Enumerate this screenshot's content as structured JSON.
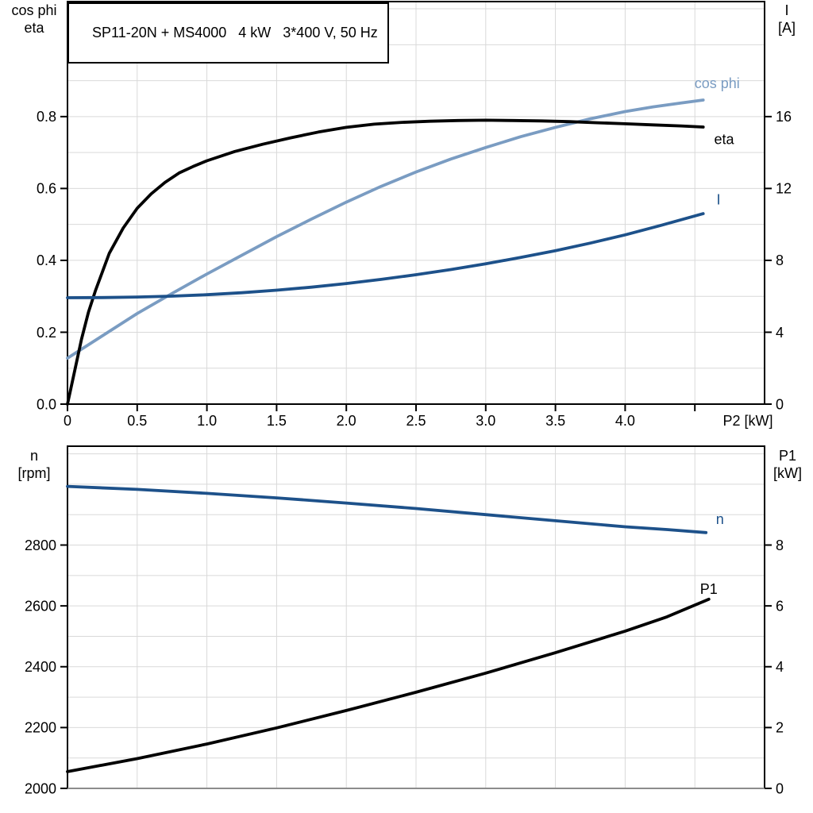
{
  "title": "SP11-20N + MS4000   4 kW   3*400 V, 50 Hz",
  "colors": {
    "axis": "#000000",
    "grid": "#d9d9d9",
    "baseline_gray": "#8c8c8c",
    "eta": "#000000",
    "cos_phi": "#7a9cc2",
    "current": "#1d518a",
    "speed": "#1d518a",
    "p1": "#000000",
    "text": "#000000"
  },
  "chart_data": [
    {
      "type": "line",
      "title": "SP11-20N + MS4000   4 kW   3*400 V, 50 Hz",
      "grid": true,
      "legend_position": "inline-curve-labels",
      "x_axis": {
        "label": "P2 [kW]",
        "range": [
          0,
          5.0
        ],
        "grid_step": 0.5,
        "ticks": [
          {
            "v": 0,
            "t": "0"
          },
          {
            "v": 0.5,
            "t": "0.5"
          },
          {
            "v": 1.0,
            "t": "1.0"
          },
          {
            "v": 1.5,
            "t": "1.5"
          },
          {
            "v": 2.0,
            "t": "2.0"
          },
          {
            "v": 2.5,
            "t": "2.5"
          },
          {
            "v": 3.0,
            "t": "3.0"
          },
          {
            "v": 3.5,
            "t": "3.5"
          },
          {
            "v": 4.0,
            "t": "4.0"
          },
          {
            "v": 4.5,
            "t": ""
          }
        ]
      },
      "left_axis": {
        "label_lines": [
          "cos phi",
          "eta"
        ],
        "range": [
          0,
          1.12
        ],
        "grid_step": 0.1,
        "ticks": [
          {
            "v": 0.0,
            "t": "0.0"
          },
          {
            "v": 0.2,
            "t": "0.2"
          },
          {
            "v": 0.4,
            "t": "0.4"
          },
          {
            "v": 0.6,
            "t": "0.6"
          },
          {
            "v": 0.8,
            "t": "0.8"
          }
        ]
      },
      "right_axis": {
        "label_lines": [
          "I",
          "[A]"
        ],
        "range": [
          0,
          22.4
        ],
        "grid_step": 2,
        "ticks": [
          {
            "v": 0,
            "t": "0"
          },
          {
            "v": 4,
            "t": "4"
          },
          {
            "v": 8,
            "t": "8"
          },
          {
            "v": 12,
            "t": "12"
          },
          {
            "v": 16,
            "t": "16"
          }
        ]
      },
      "series": [
        {
          "name": "cos-phi",
          "label": "cos phi",
          "axis": "left",
          "color_key": "cos_phi",
          "label_at": [
            4.66,
            0.893
          ],
          "points": [
            [
              0,
              0.128
            ],
            [
              0.25,
              0.19
            ],
            [
              0.5,
              0.252
            ],
            [
              0.75,
              0.308
            ],
            [
              1.0,
              0.362
            ],
            [
              1.25,
              0.414
            ],
            [
              1.5,
              0.466
            ],
            [
              1.75,
              0.515
            ],
            [
              2.0,
              0.562
            ],
            [
              2.25,
              0.606
            ],
            [
              2.5,
              0.646
            ],
            [
              2.75,
              0.682
            ],
            [
              3.0,
              0.714
            ],
            [
              3.25,
              0.744
            ],
            [
              3.5,
              0.77
            ],
            [
              3.75,
              0.794
            ],
            [
              4.0,
              0.814
            ],
            [
              4.2,
              0.827
            ],
            [
              4.4,
              0.838
            ],
            [
              4.56,
              0.846
            ]
          ]
        },
        {
          "name": "eta",
          "label": "eta",
          "axis": "left",
          "color_key": "eta",
          "label_at": [
            4.71,
            0.737
          ],
          "points": [
            [
              0,
              0
            ],
            [
              0.05,
              0.09
            ],
            [
              0.1,
              0.18
            ],
            [
              0.15,
              0.255
            ],
            [
              0.2,
              0.315
            ],
            [
              0.3,
              0.42
            ],
            [
              0.4,
              0.49
            ],
            [
              0.5,
              0.545
            ],
            [
              0.6,
              0.585
            ],
            [
              0.7,
              0.617
            ],
            [
              0.8,
              0.643
            ],
            [
              0.9,
              0.661
            ],
            [
              1.0,
              0.677
            ],
            [
              1.2,
              0.703
            ],
            [
              1.4,
              0.723
            ],
            [
              1.6,
              0.741
            ],
            [
              1.8,
              0.757
            ],
            [
              2.0,
              0.77
            ],
            [
              2.2,
              0.779
            ],
            [
              2.4,
              0.784
            ],
            [
              2.6,
              0.787
            ],
            [
              2.8,
              0.789
            ],
            [
              3.0,
              0.79
            ],
            [
              3.2,
              0.789
            ],
            [
              3.4,
              0.788
            ],
            [
              3.6,
              0.786
            ],
            [
              3.8,
              0.783
            ],
            [
              4.0,
              0.78
            ],
            [
              4.2,
              0.777
            ],
            [
              4.4,
              0.774
            ],
            [
              4.56,
              0.771
            ]
          ]
        },
        {
          "name": "current",
          "label": "I",
          "axis": "right",
          "color_key": "current",
          "label_at": [
            4.67,
            11.4
          ],
          "points": [
            [
              0,
              5.92
            ],
            [
              0.25,
              5.93
            ],
            [
              0.5,
              5.96
            ],
            [
              0.75,
              6.01
            ],
            [
              1.0,
              6.09
            ],
            [
              1.25,
              6.2
            ],
            [
              1.5,
              6.34
            ],
            [
              1.75,
              6.51
            ],
            [
              2.0,
              6.71
            ],
            [
              2.25,
              6.94
            ],
            [
              2.5,
              7.2
            ],
            [
              2.75,
              7.49
            ],
            [
              3.0,
              7.81
            ],
            [
              3.25,
              8.16
            ],
            [
              3.5,
              8.54
            ],
            [
              3.75,
              8.96
            ],
            [
              4.0,
              9.42
            ],
            [
              4.25,
              9.93
            ],
            [
              4.56,
              10.6
            ]
          ]
        }
      ]
    },
    {
      "type": "line",
      "title": "",
      "grid": true,
      "legend_position": "inline-curve-labels",
      "x_axis": {
        "label": "",
        "range": [
          0,
          5.0
        ],
        "grid_step": 0.5,
        "ticks": []
      },
      "left_axis": {
        "label_lines": [
          "n",
          "[rpm]"
        ],
        "range": [
          2000,
          3125
        ],
        "grid_step": 100,
        "ticks": [
          {
            "v": 2000,
            "t": "2000"
          },
          {
            "v": 2200,
            "t": "2200"
          },
          {
            "v": 2400,
            "t": "2400"
          },
          {
            "v": 2600,
            "t": "2600"
          },
          {
            "v": 2800,
            "t": "2800"
          }
        ]
      },
      "right_axis": {
        "label_lines": [
          "P1",
          "[kW]"
        ],
        "range": [
          0,
          11.25
        ],
        "grid_step": 1,
        "ticks": [
          {
            "v": 0,
            "t": "0"
          },
          {
            "v": 2,
            "t": "2"
          },
          {
            "v": 4,
            "t": "4"
          },
          {
            "v": 6,
            "t": "6"
          },
          {
            "v": 8,
            "t": "8"
          }
        ]
      },
      "series": [
        {
          "name": "speed",
          "label": "n",
          "axis": "left",
          "color_key": "speed",
          "label_at": [
            4.68,
            2886
          ],
          "points": [
            [
              0,
              2993
            ],
            [
              0.5,
              2983
            ],
            [
              1.0,
              2970
            ],
            [
              1.5,
              2955
            ],
            [
              2.0,
              2938
            ],
            [
              2.5,
              2920
            ],
            [
              3.0,
              2900
            ],
            [
              3.5,
              2880
            ],
            [
              4.0,
              2860
            ],
            [
              4.3,
              2851
            ],
            [
              4.58,
              2841
            ]
          ]
        },
        {
          "name": "p1",
          "label": "P1",
          "axis": "right",
          "color_key": "p1",
          "label_at": [
            4.6,
            6.56
          ],
          "points": [
            [
              0,
              0.55
            ],
            [
              0.5,
              0.98
            ],
            [
              1.0,
              1.46
            ],
            [
              1.5,
              1.99
            ],
            [
              2.0,
              2.56
            ],
            [
              2.5,
              3.16
            ],
            [
              3.0,
              3.79
            ],
            [
              3.5,
              4.46
            ],
            [
              4.0,
              5.17
            ],
            [
              4.3,
              5.64
            ],
            [
              4.6,
              6.22
            ]
          ]
        }
      ]
    }
  ]
}
